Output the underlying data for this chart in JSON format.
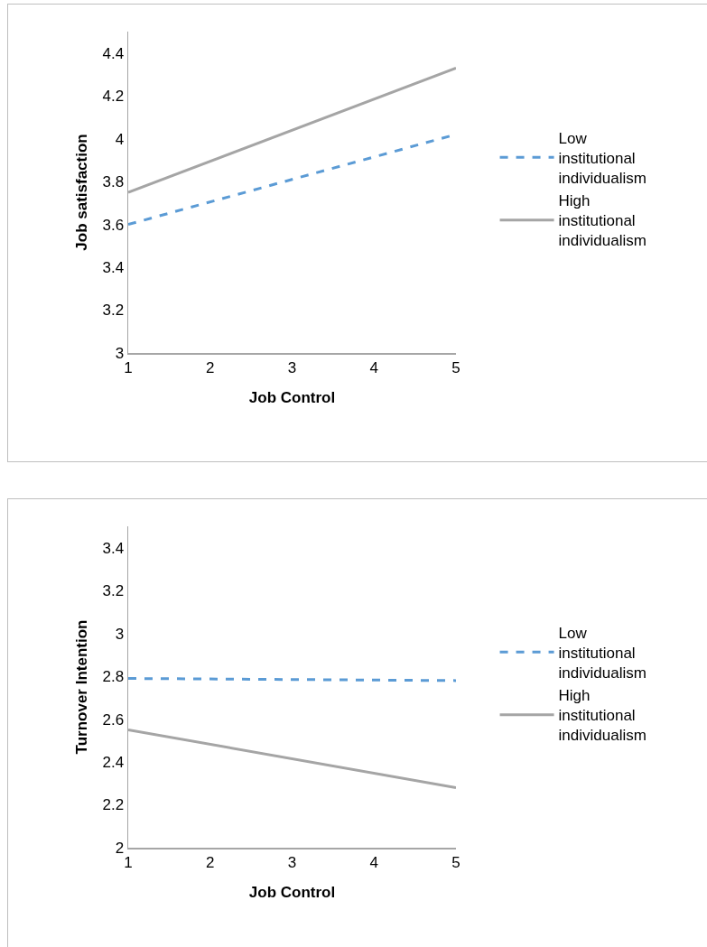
{
  "chart_data": [
    {
      "type": "line",
      "xlabel": "Job Control",
      "ylabel": "Job satisfaction",
      "categories": [
        "1",
        "2",
        "3",
        "4",
        "5"
      ],
      "ylim": [
        3,
        4.5
      ],
      "yticks": [
        3,
        3.2,
        3.4,
        3.6,
        3.8,
        4,
        4.2,
        4.4
      ],
      "grid": false,
      "legend": "right",
      "marker": "none",
      "series": [
        {
          "name": "Low institutional individualism",
          "color": "#5b9bd5",
          "line_style": "dashed",
          "values": [
            3.6,
            null,
            null,
            null,
            4.02
          ]
        },
        {
          "name": "High institutional individualism",
          "color": "#a5a5a5",
          "line_style": "solid",
          "values": [
            3.75,
            null,
            null,
            null,
            4.33
          ]
        }
      ]
    },
    {
      "type": "line",
      "xlabel": "Job Control",
      "ylabel": "Turnover Intention",
      "categories": [
        "1",
        "2",
        "3",
        "4",
        "5"
      ],
      "ylim": [
        2,
        3.5
      ],
      "yticks": [
        2,
        2.2,
        2.4,
        2.6,
        2.8,
        3,
        3.2,
        3.4
      ],
      "grid": false,
      "legend": "right",
      "marker": "none",
      "series": [
        {
          "name": "Low institutional individualism",
          "color": "#5b9bd5",
          "line_style": "dashed",
          "values": [
            2.79,
            null,
            null,
            null,
            2.78
          ]
        },
        {
          "name": "High institutional individualism",
          "color": "#a5a5a5",
          "line_style": "solid",
          "values": [
            2.55,
            null,
            null,
            null,
            2.28
          ]
        }
      ]
    }
  ]
}
